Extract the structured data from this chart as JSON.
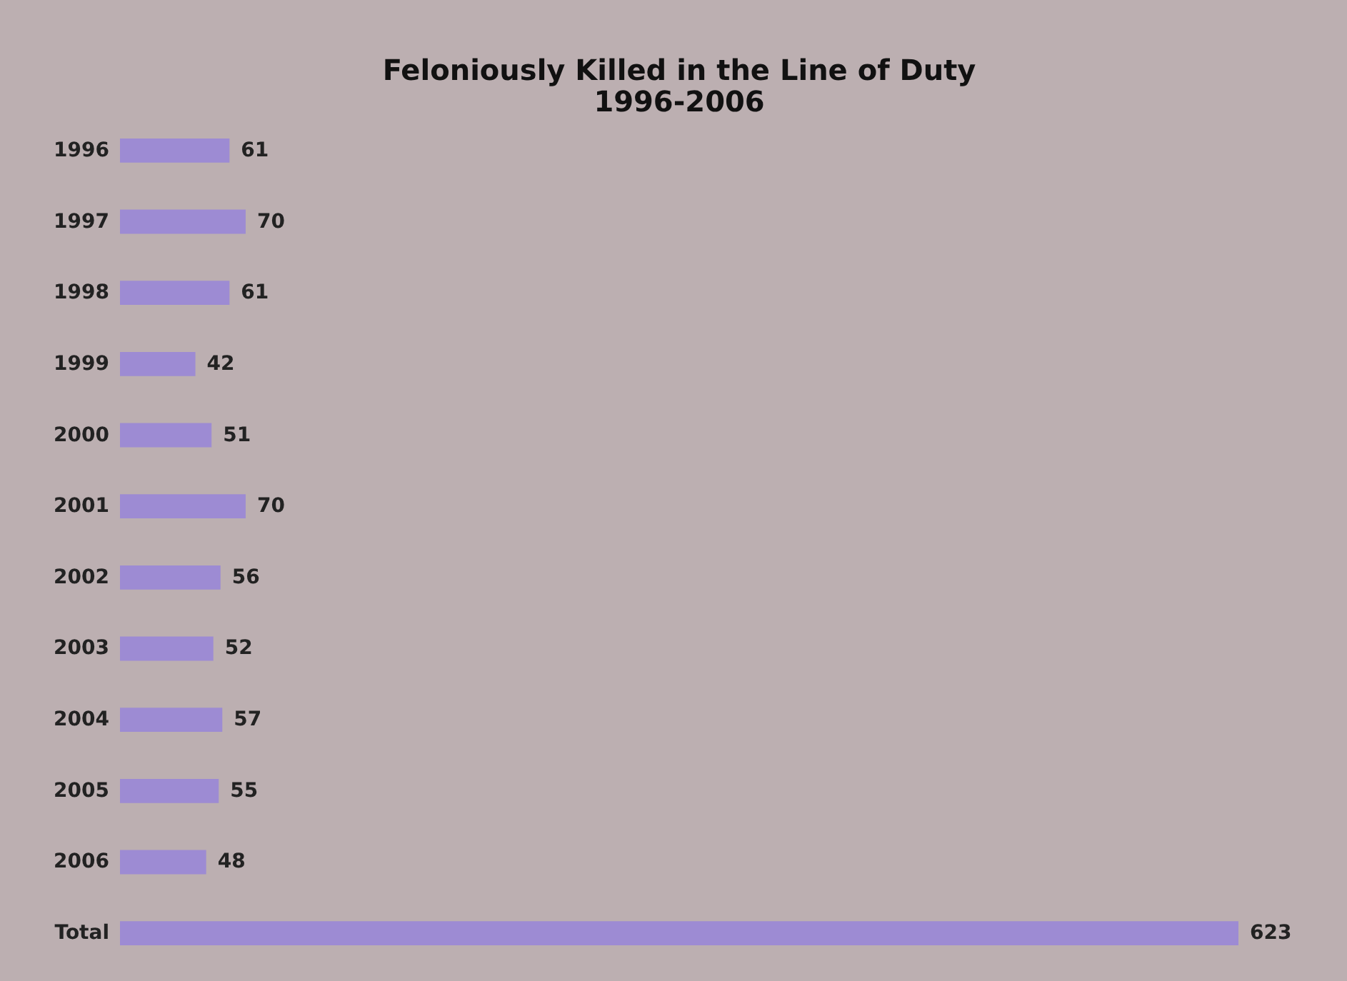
{
  "chart_data": {
    "type": "bar",
    "title": "Feloniously Killed in the Line of Duty",
    "subtitle": "1996-2006",
    "orientation": "horizontal",
    "categories": [
      "1996",
      "1997",
      "1998",
      "1999",
      "2000",
      "2001",
      "2002",
      "2003",
      "2004",
      "2005",
      "2006",
      "Total"
    ],
    "values": [
      61,
      70,
      61,
      42,
      51,
      70,
      56,
      52,
      57,
      55,
      48,
      623
    ],
    "color": "#9d8bd3",
    "data_labels": true
  }
}
